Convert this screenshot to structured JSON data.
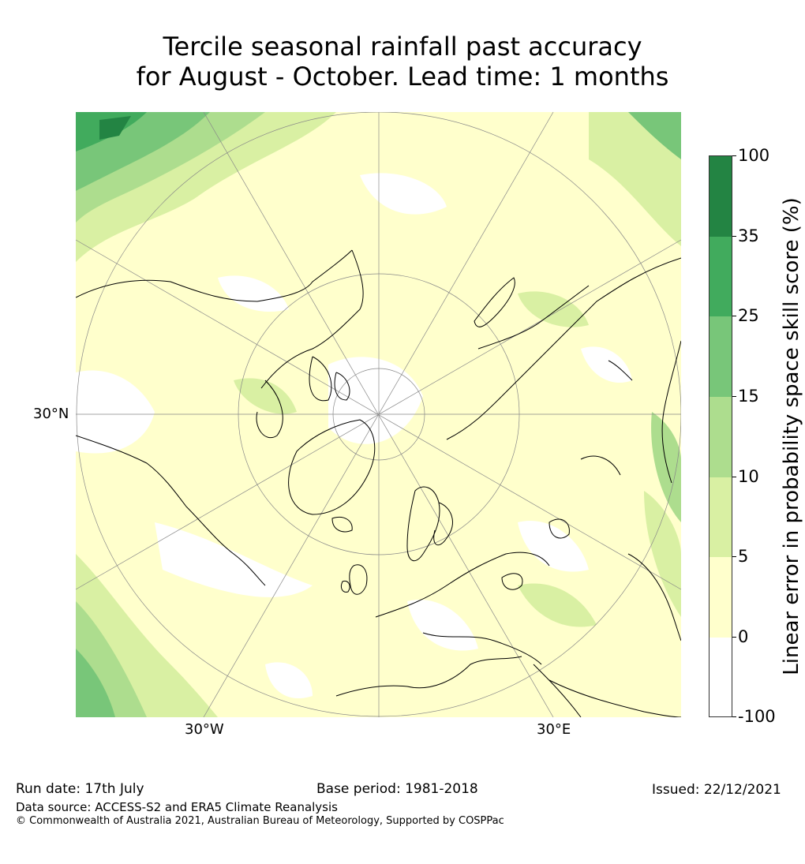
{
  "title": {
    "line1": "Tercile seasonal rainfall past accuracy",
    "line2": "for August - October. Lead time: 1 months"
  },
  "map": {
    "lat_label": "30°N",
    "lon_label_left": "30°W",
    "lon_label_right": "30°E",
    "projection": "north polar stereographic",
    "colors": {
      "land_outline": "#000000",
      "graticule": "#888888"
    }
  },
  "legend": {
    "title": "Linear error in probability space skill score (%)",
    "ticks": [
      "100",
      "35",
      "25",
      "15",
      "10",
      "5",
      "0",
      "-100"
    ],
    "bins": [
      {
        "range": "35 to 100",
        "color": "#238443"
      },
      {
        "range": "25 to 35",
        "color": "#41ab5d"
      },
      {
        "range": "15 to 25",
        "color": "#78c679"
      },
      {
        "range": "10 to 15",
        "color": "#addd8e"
      },
      {
        "range": "5 to 10",
        "color": "#d9f0a3"
      },
      {
        "range": "0 to 5",
        "color": "#ffffcc"
      },
      {
        "range": "-100 to 0",
        "color": "#ffffff"
      }
    ]
  },
  "footer": {
    "run_date": "Run date: 17th July",
    "base_period": "Base period: 1981-2018",
    "issued": "Issued: 22/12/2021",
    "data_source": "Data source: ACCESS-S2 and ERA5 Climate Reanalysis",
    "copyright": "© Commonwealth of Australia 2021, Australian Bureau of Meteorology, Supported by COSPPac"
  }
}
